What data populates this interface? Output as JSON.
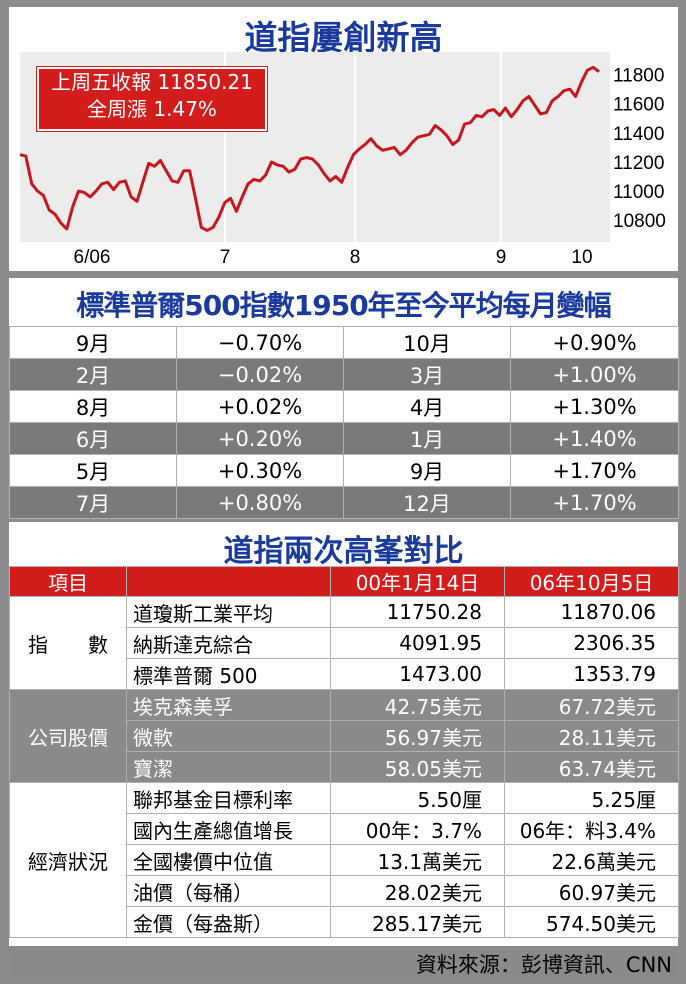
{
  "chart_title": "道指屢創新高",
  "callout": {
    "line1": "上周五收報 11850.21",
    "line2": "全周漲 1.47%"
  },
  "chart_data": {
    "type": "line",
    "x_tick_labels": [
      "6/06",
      "7",
      "8",
      "9",
      "10"
    ],
    "y_ticks": [
      10800,
      11000,
      11200,
      11400,
      11600,
      11800
    ],
    "ylim": [
      10650,
      11880
    ],
    "x": [
      0,
      1,
      2,
      3,
      4,
      5,
      6,
      7,
      8,
      9,
      10,
      11,
      12,
      13,
      14,
      15,
      16,
      17,
      18,
      19,
      20,
      21,
      22,
      23,
      24,
      25,
      26,
      27,
      28,
      29,
      30,
      31,
      32,
      33,
      34,
      35,
      36,
      37,
      38,
      39,
      40,
      41,
      42,
      43,
      44,
      45,
      46,
      47,
      48,
      49,
      50,
      51,
      52,
      53,
      54,
      55,
      56,
      57,
      58,
      59,
      60,
      61,
      62,
      63,
      64,
      65,
      66,
      67,
      68,
      69,
      70,
      71,
      72,
      73,
      74,
      75,
      76,
      77,
      78,
      79,
      80,
      81,
      82,
      83,
      84,
      85,
      86,
      87,
      88,
      89,
      90,
      91,
      92,
      93,
      94,
      95,
      96,
      97,
      98,
      99
    ],
    "values": [
      11250,
      11240,
      11050,
      11000,
      10970,
      10870,
      10840,
      10780,
      10740,
      10890,
      11000,
      10990,
      10960,
      11000,
      11050,
      11060,
      11010,
      11060,
      11070,
      10960,
      10930,
      11060,
      11190,
      11170,
      11210,
      11140,
      11070,
      11060,
      11140,
      11140,
      10950,
      10750,
      10730,
      10750,
      10820,
      10920,
      10950,
      10860,
      10960,
      11050,
      11080,
      11070,
      11110,
      11200,
      11180,
      11170,
      11130,
      11150,
      11220,
      11230,
      11220,
      11180,
      11120,
      11070,
      11100,
      11060,
      11160,
      11250,
      11290,
      11320,
      11360,
      11310,
      11280,
      11290,
      11300,
      11250,
      11280,
      11330,
      11370,
      11380,
      11390,
      11450,
      11420,
      11380,
      11320,
      11350,
      11460,
      11470,
      11520,
      11510,
      11550,
      11560,
      11520,
      11570,
      11510,
      11560,
      11620,
      11650,
      11590,
      11530,
      11540,
      11620,
      11650,
      11690,
      11700,
      11650,
      11750,
      11830,
      11850,
      11820
    ]
  },
  "sp_title": "標準普爾500指數1950年至今平均每月變幅",
  "sp_rows": [
    {
      "m1": "9月",
      "v1": "−0.70%",
      "m2": "10月",
      "v2": "+0.90%"
    },
    {
      "m1": "2月",
      "v1": "−0.02%",
      "m2": "3月",
      "v2": "+1.00%"
    },
    {
      "m1": "8月",
      "v1": "+0.02%",
      "m2": "4月",
      "v2": "+1.30%"
    },
    {
      "m1": "6月",
      "v1": "+0.20%",
      "m2": "1月",
      "v2": "+1.40%"
    },
    {
      "m1": "5月",
      "v1": "+0.30%",
      "m2": "9月",
      "v2": "+1.70%"
    },
    {
      "m1": "7月",
      "v1": "+0.80%",
      "m2": "12月",
      "v2": "+1.70%"
    }
  ],
  "cmp_title": "道指兩次高峯對比",
  "cmp_header": {
    "col0": "項目",
    "col2": "00年1月14日",
    "col3": "06年10月5日"
  },
  "group_index": "指　　數",
  "group_stock": "公司股價",
  "group_econ": "經濟狀況",
  "rows_index": [
    {
      "name": "道瓊斯工業平均",
      "a": "11750.28",
      "b": "11870.06"
    },
    {
      "name": "納斯達克綜合",
      "a": "4091.95",
      "b": "2306.35"
    },
    {
      "name": "標準普爾 500",
      "a": "1473.00",
      "b": "1353.79"
    }
  ],
  "rows_stock": [
    {
      "name": "埃克森美孚",
      "a": "42.75美元",
      "b": "67.72美元"
    },
    {
      "name": "微軟",
      "a": "56.97美元",
      "b": "28.11美元"
    },
    {
      "name": "寶潔",
      "a": "58.05美元",
      "b": "63.74美元"
    }
  ],
  "rows_econ": [
    {
      "name": "聯邦基金目標利率",
      "a": "5.50厘",
      "b": "5.25厘"
    },
    {
      "name": "國內生產總值增長",
      "a": "00年：3.7%",
      "b": "06年：料3.4%"
    },
    {
      "name": "全國樓價中位值",
      "a": "13.1萬美元",
      "b": "22.6萬美元"
    },
    {
      "name": "油價（每桶）",
      "a": "28.02美元",
      "b": "60.97美元"
    },
    {
      "name": "金價（每盎斯）",
      "a": "285.17美元",
      "b": "574.50美元"
    }
  ],
  "source": "資料來源：彭博資訊、CNN",
  "colors": {
    "title_blue": "#1a3a9e",
    "callout_red": "#d31c1c",
    "line_red": "#c8161d"
  }
}
